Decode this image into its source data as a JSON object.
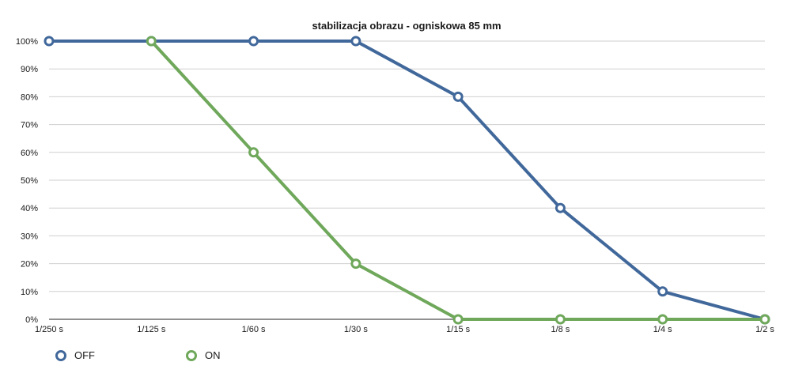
{
  "chart_data": {
    "type": "line",
    "title": "stabilizacja obrazu - ogniskowa 85 mm",
    "xlabel": "",
    "ylabel": "",
    "categories": [
      "1/250 s",
      "1/125 s",
      "1/60 s",
      "1/30 s",
      "1/15 s",
      "1/8 s",
      "1/4 s",
      "1/2 s"
    ],
    "ylim": [
      0,
      100
    ],
    "y_ticks": [
      "0%",
      "10%",
      "20%",
      "30%",
      "40%",
      "50%",
      "60%",
      "70%",
      "80%",
      "90%",
      "100%"
    ],
    "grid": true,
    "legend_position": "bottom-left",
    "series": [
      {
        "name": "OFF",
        "color": "#41689b",
        "values": [
          100,
          100,
          100,
          100,
          80,
          40,
          10,
          0
        ]
      },
      {
        "name": "ON",
        "color": "#6fa85b",
        "values": [
          null,
          100,
          60,
          20,
          0,
          0,
          0,
          0
        ]
      }
    ]
  }
}
